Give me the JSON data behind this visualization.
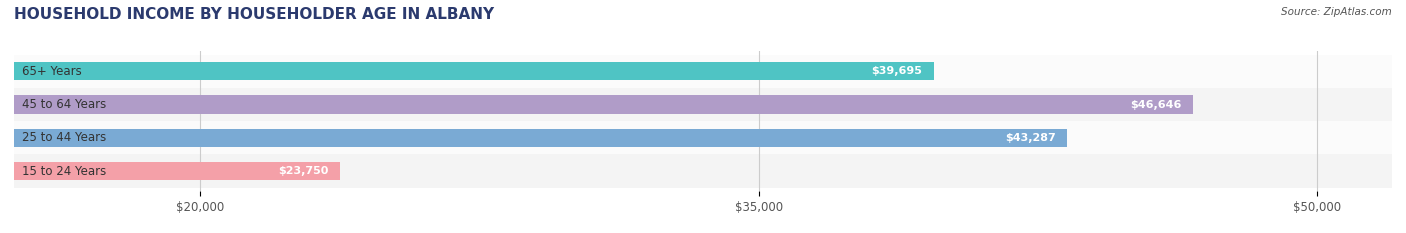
{
  "title": "HOUSEHOLD INCOME BY HOUSEHOLDER AGE IN ALBANY",
  "source": "Source: ZipAtlas.com",
  "categories": [
    "15 to 24 Years",
    "25 to 44 Years",
    "45 to 64 Years",
    "65+ Years"
  ],
  "values": [
    23750,
    43287,
    46646,
    39695
  ],
  "value_labels": [
    "$23,750",
    "$43,287",
    "$46,646",
    "$39,695"
  ],
  "bar_colors": [
    "#f4a0a8",
    "#7aaad4",
    "#b09cc8",
    "#4fc4c4"
  ],
  "row_bg_colors": [
    "#f5f5f5",
    "#f5f5f5",
    "#f5f5f5",
    "#f5f5f5"
  ],
  "xlim": [
    15000,
    52000
  ],
  "xticks": [
    20000,
    35000,
    50000
  ],
  "xtick_labels": [
    "$20,000",
    "$35,000",
    "$50,000"
  ],
  "title_fontsize": 11,
  "label_fontsize": 8.5,
  "value_fontsize": 8,
  "background_color": "#ffffff",
  "bar_height": 0.55,
  "title_color": "#2b3a6e",
  "source_color": "#555555"
}
